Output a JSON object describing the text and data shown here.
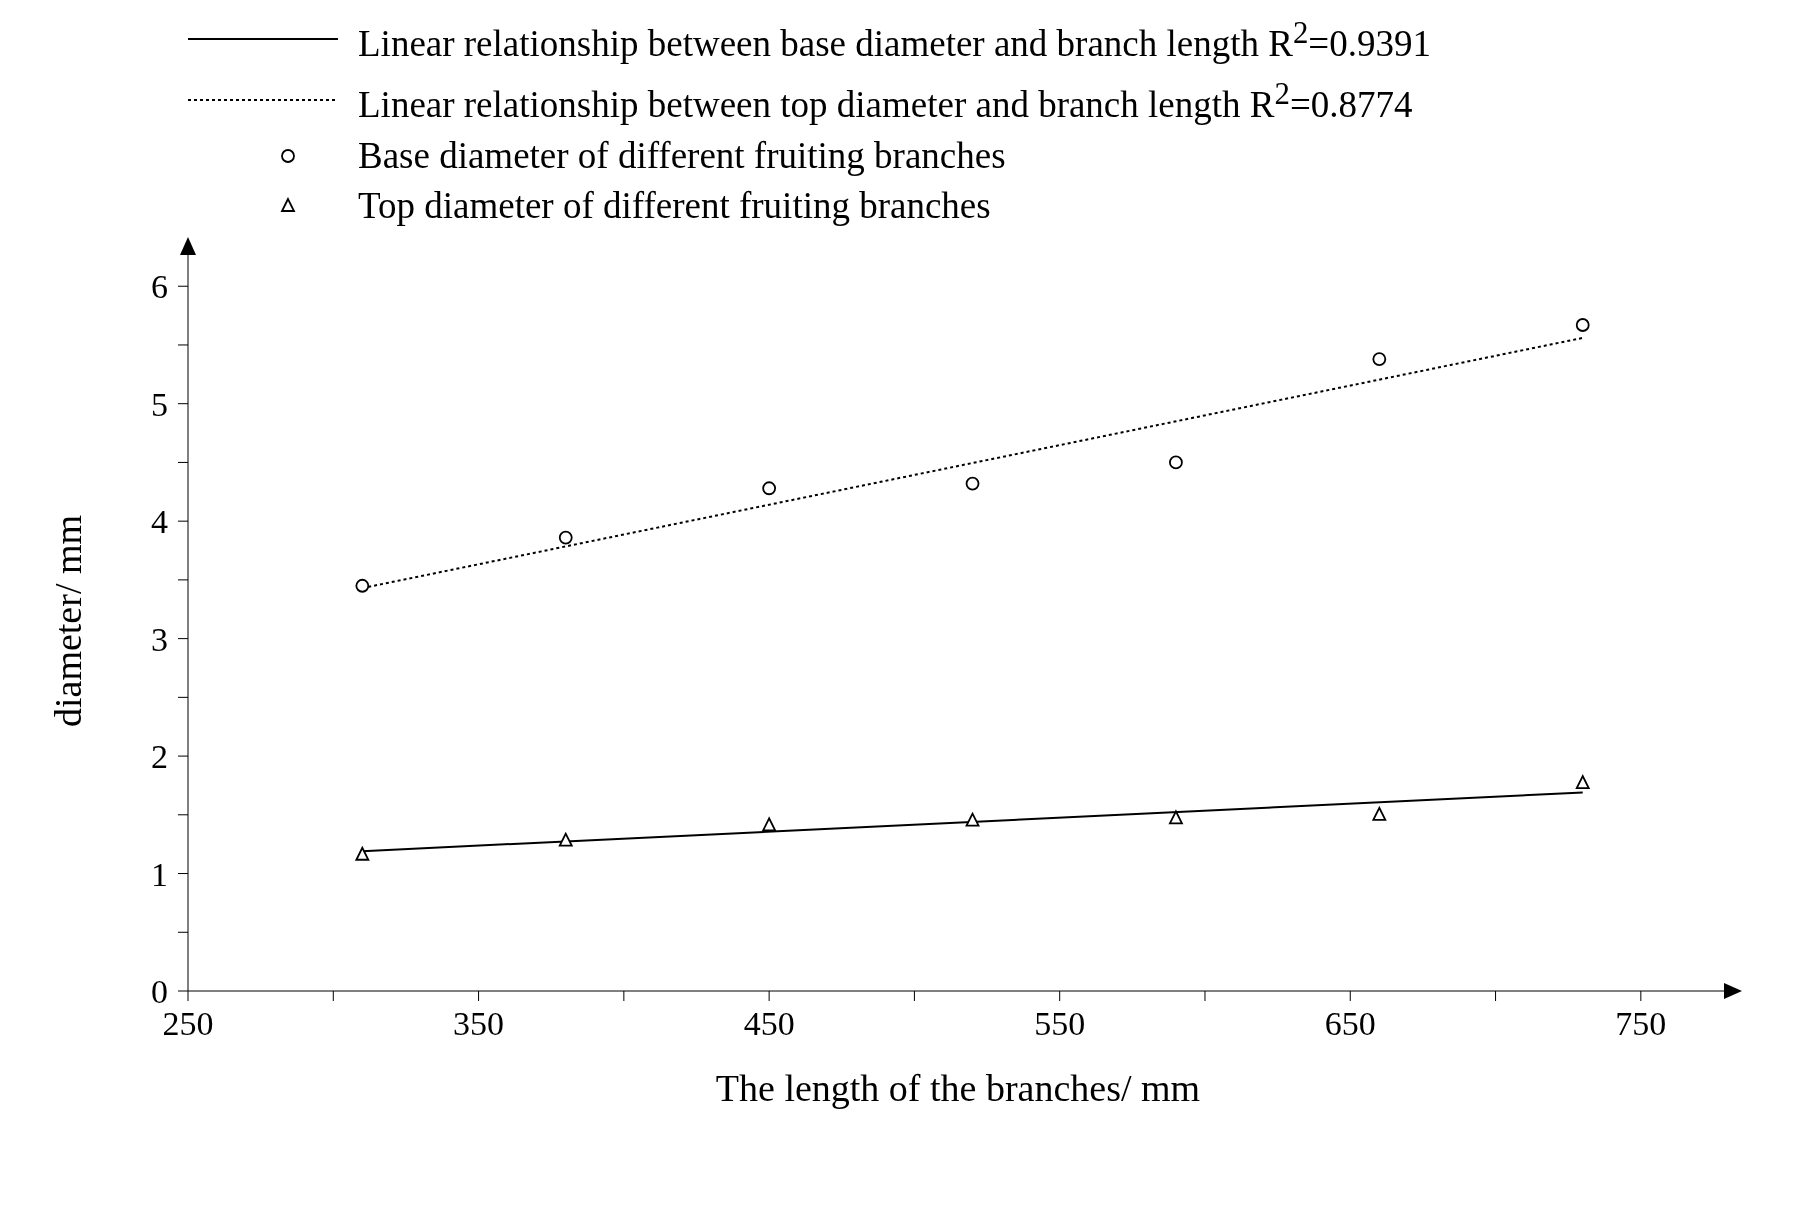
{
  "chart_data": {
    "type": "scatter",
    "xlabel": "The length of the branches/ mm",
    "ylabel": "diameter/ mm",
    "xlim": [
      250,
      780
    ],
    "xticks": [
      250,
      {
        "value": 300,
        "label": null
      },
      350,
      {
        "value": 400,
        "label": null
      },
      450,
      {
        "value": 500,
        "label": null
      },
      550,
      {
        "value": 600,
        "label": null
      },
      650,
      {
        "value": 700,
        "label": null
      },
      750
    ],
    "ylim": [
      0,
      6.3
    ],
    "yticks": [
      0,
      {
        "value": 0.5,
        "label": null
      },
      1,
      {
        "value": 1.5,
        "label": null
      },
      2,
      {
        "value": 2.5,
        "label": null
      },
      3,
      {
        "value": 3.5,
        "label": null
      },
      4,
      {
        "value": 4.5,
        "label": null
      },
      5,
      {
        "value": 5.5,
        "label": null
      },
      6
    ],
    "grid": false,
    "legend": "top",
    "series": [
      {
        "name": "Linear relationship between base diameter and branch length R$^{2}$=0.9391",
        "type": "line",
        "color": "#000000",
        "line_style": "solid",
        "marker": "none",
        "x": [
          310,
          730
        ],
        "values": [
          1.19,
          1.69
        ]
      },
      {
        "name": "Linear relationship between top diameter and branch length   R$^{2}$=0.8774",
        "type": "line",
        "color": "#000000",
        "line_style": "dotted",
        "marker": "none",
        "x": [
          310,
          730
        ],
        "values": [
          3.43,
          5.56
        ]
      },
      {
        "name": "Base diameter of different fruiting branches",
        "color": "#000000",
        "marker": "circle",
        "x": [
          310,
          380,
          450,
          520,
          590,
          660,
          730
        ],
        "values": [
          3.45,
          3.86,
          4.28,
          4.32,
          4.5,
          5.38,
          5.67
        ]
      },
      {
        "name": "Top diameter of different fruiting branches",
        "color": "#000000",
        "marker": "triangle",
        "x": [
          310,
          380,
          450,
          520,
          590,
          660,
          730
        ],
        "values": [
          1.16,
          1.28,
          1.41,
          1.45,
          1.47,
          1.5,
          1.77
        ]
      }
    ]
  }
}
